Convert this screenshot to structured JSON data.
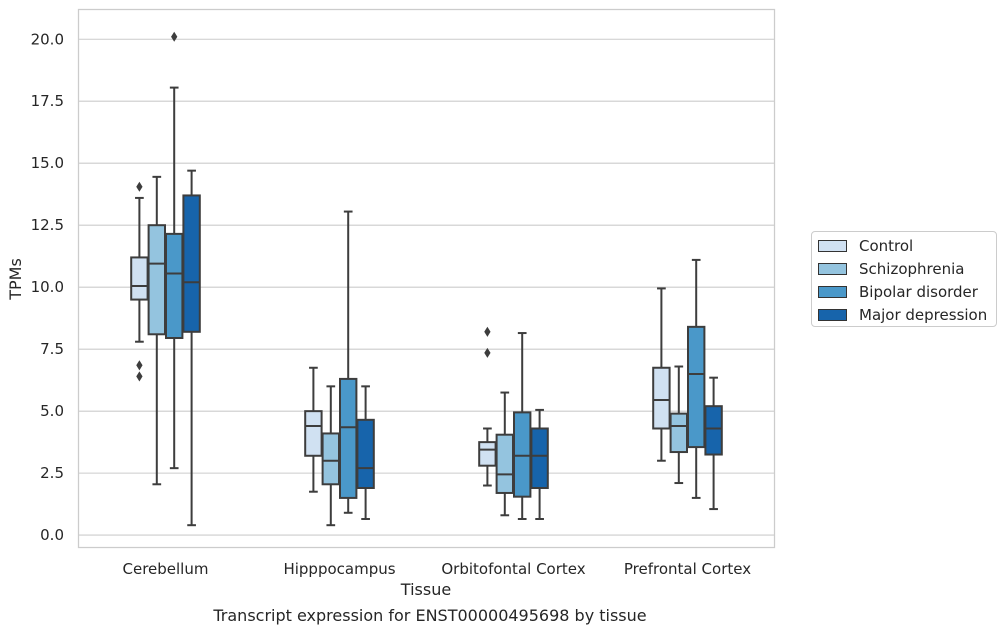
{
  "caption": "Transcript expression for ENST00000495698 by tissue",
  "legend": [
    {
      "label": "Control",
      "color": "#d0e1f2"
    },
    {
      "label": "Schizophrenia",
      "color": "#94c4df"
    },
    {
      "label": "Bipolar disorder",
      "color": "#4a98c9"
    },
    {
      "label": "Major depression",
      "color": "#1764ab"
    }
  ],
  "chart_data": {
    "type": "box",
    "xlabel": "Tissue",
    "ylabel": "TPMs",
    "ylim": [
      -0.5,
      21.2
    ],
    "yticks": [
      0.0,
      2.5,
      5.0,
      7.5,
      10.0,
      12.5,
      15.0,
      17.5,
      20.0
    ],
    "ytick_labels": [
      "0.0",
      "2.5",
      "5.0",
      "7.5",
      "10.0",
      "12.5",
      "15.0",
      "17.5",
      "20.0"
    ],
    "grid": "horizontal",
    "legend_position": "right, outside",
    "categories": [
      "Cerebellum",
      "Hipppocampus",
      "Orbitofontal Cortex",
      "Prefrontal Cortex"
    ],
    "series": [
      {
        "name": "Control",
        "color": "#d0e1f2",
        "boxes": [
          {
            "min": 7.8,
            "q1": 9.5,
            "median": 10.05,
            "q3": 11.2,
            "max": 13.6,
            "outliers": [
              14.05,
              6.85,
              6.4
            ]
          },
          {
            "min": 1.75,
            "q1": 3.2,
            "median": 4.4,
            "q3": 5.0,
            "max": 6.75,
            "outliers": []
          },
          {
            "min": 2.0,
            "q1": 2.8,
            "median": 3.45,
            "q3": 3.75,
            "max": 4.3,
            "outliers": [
              8.2,
              7.35
            ]
          },
          {
            "min": 3.0,
            "q1": 4.3,
            "median": 5.45,
            "q3": 6.75,
            "max": 9.95,
            "outliers": []
          }
        ]
      },
      {
        "name": "Schizophrenia",
        "color": "#94c4df",
        "boxes": [
          {
            "min": 2.05,
            "q1": 8.1,
            "median": 10.95,
            "q3": 12.5,
            "max": 14.45,
            "outliers": []
          },
          {
            "min": 0.4,
            "q1": 2.05,
            "median": 3.0,
            "q3": 4.1,
            "max": 6.0,
            "outliers": []
          },
          {
            "min": 0.8,
            "q1": 1.7,
            "median": 2.45,
            "q3": 4.05,
            "max": 5.75,
            "outliers": []
          },
          {
            "min": 2.1,
            "q1": 3.35,
            "median": 4.4,
            "q3": 4.9,
            "max": 6.8,
            "outliers": []
          }
        ]
      },
      {
        "name": "Bipolar disorder",
        "color": "#4a98c9",
        "boxes": [
          {
            "min": 2.7,
            "q1": 7.95,
            "median": 10.55,
            "q3": 12.15,
            "max": 18.05,
            "outliers": [
              20.1
            ]
          },
          {
            "min": 0.9,
            "q1": 1.5,
            "median": 4.35,
            "q3": 6.3,
            "max": 13.05,
            "outliers": []
          },
          {
            "min": 0.65,
            "q1": 1.55,
            "median": 3.2,
            "q3": 4.95,
            "max": 8.15,
            "outliers": []
          },
          {
            "min": 1.5,
            "q1": 3.55,
            "median": 6.5,
            "q3": 8.4,
            "max": 11.1,
            "outliers": []
          }
        ]
      },
      {
        "name": "Major depression",
        "color": "#1764ab",
        "boxes": [
          {
            "min": 0.4,
            "q1": 8.2,
            "median": 10.2,
            "q3": 13.7,
            "max": 14.7,
            "outliers": []
          },
          {
            "min": 0.65,
            "q1": 1.9,
            "median": 2.7,
            "q3": 4.65,
            "max": 6.0,
            "outliers": []
          },
          {
            "min": 0.65,
            "q1": 1.9,
            "median": 3.2,
            "q3": 4.3,
            "max": 5.05,
            "outliers": []
          },
          {
            "min": 1.05,
            "q1": 3.25,
            "median": 4.3,
            "q3": 5.2,
            "max": 6.35,
            "outliers": []
          }
        ]
      }
    ]
  }
}
